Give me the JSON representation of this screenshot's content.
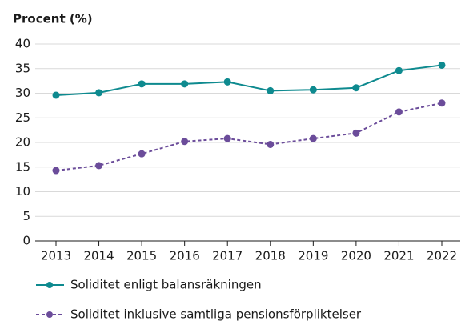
{
  "chart_data": {
    "type": "line",
    "y_label": "Procent (%)",
    "categories": [
      "2013",
      "2014",
      "2015",
      "2016",
      "2017",
      "2018",
      "2019",
      "2020",
      "2021",
      "2022"
    ],
    "series": [
      {
        "name": "Soliditet enligt balansräkningen",
        "color": "#0e8a8f",
        "line_style": "solid",
        "values": [
          29.6,
          30.1,
          31.9,
          31.9,
          32.3,
          30.5,
          30.7,
          31.1,
          34.6,
          35.7
        ]
      },
      {
        "name": "Soliditet inklusive samtliga pensionsförpliktelser",
        "color": "#6b4c9a",
        "line_style": "dashed",
        "values": [
          14.3,
          15.3,
          17.7,
          20.2,
          20.8,
          19.6,
          20.8,
          21.9,
          26.2,
          28.0
        ]
      }
    ],
    "ylim": [
      0,
      40
    ],
    "yticks": [
      0,
      5,
      10,
      15,
      20,
      25,
      30,
      35,
      40
    ],
    "grid": true,
    "legend": "bottom"
  }
}
